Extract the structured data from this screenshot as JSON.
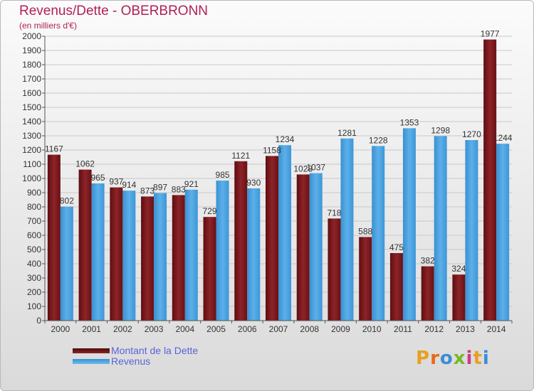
{
  "header": {
    "title": "Revenus/Dette - OBERBRONN",
    "subtitle": "(en milliers d'€)"
  },
  "legend": {
    "debt_label": "Montant de la Dette",
    "revenue_label": "Revenus"
  },
  "logo": {
    "text": "Proxiti",
    "letter_colors": [
      "#e8a020",
      "#e86818",
      "#3c8cd8",
      "#78b828",
      "#c83c8c",
      "#e8a020",
      "#3c8cd8"
    ]
  },
  "colors": {
    "debt": "#7a1518",
    "revenue": "#4aa2e0",
    "title": "#b02058",
    "legend_text": "#5a63d8"
  },
  "chart_data": {
    "type": "bar",
    "categories": [
      "2000",
      "2001",
      "2002",
      "2003",
      "2004",
      "2005",
      "2006",
      "2007",
      "2008",
      "2009",
      "2010",
      "2011",
      "2012",
      "2013",
      "2014"
    ],
    "series": [
      {
        "name": "Montant de la Dette",
        "values": [
          1167,
          1062,
          937,
          873,
          883,
          729,
          1121,
          1158,
          1028,
          718,
          588,
          475,
          382,
          324,
          1977
        ]
      },
      {
        "name": "Revenus",
        "values": [
          802,
          965,
          914,
          897,
          921,
          985,
          930,
          1234,
          1037,
          1281,
          1228,
          1353,
          1298,
          1270,
          1244
        ]
      }
    ],
    "data_labels": [
      [
        "1167",
        "1062",
        "937",
        "873",
        "883",
        "729",
        "1121",
        "1158",
        "1028",
        "718",
        "588",
        "475",
        "382",
        "324",
        "1977"
      ],
      [
        "802",
        "965",
        "914",
        "897",
        "921",
        "985",
        "930",
        "1234",
        "1037",
        "1281",
        "1228",
        "1353",
        "1298",
        "1270",
        "1244"
      ]
    ],
    "ylim": [
      0,
      2000
    ],
    "ytick_step": 100,
    "ytick_labels": [
      "0",
      "100",
      "200",
      "300",
      "400",
      "500",
      "600",
      "700",
      "800",
      "900",
      "1000",
      "1100",
      "1200",
      "1300",
      "1400",
      "1500",
      "1600",
      "1700",
      "1800",
      "1900",
      "2000"
    ],
    "grid": true,
    "legend_position": "bottom-left"
  }
}
